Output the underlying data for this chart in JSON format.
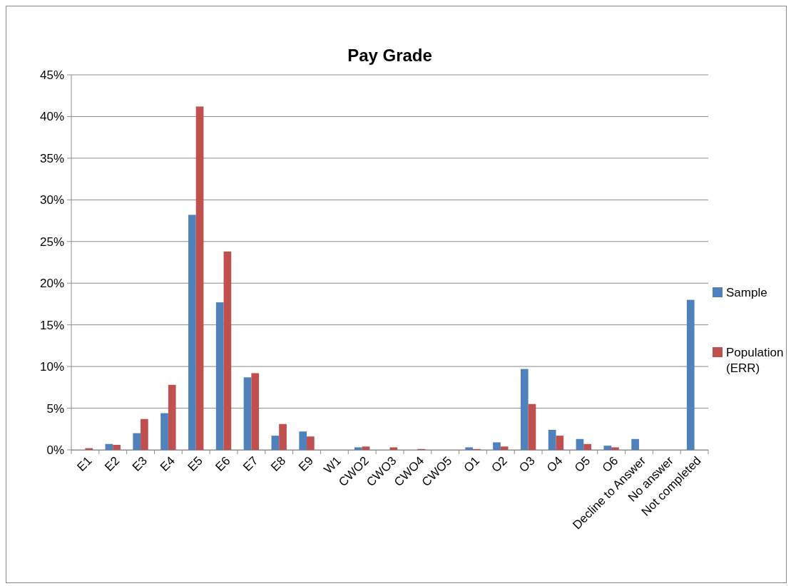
{
  "chart_data": {
    "type": "bar",
    "title": "Pay Grade",
    "categories": [
      "E1",
      "E2",
      "E3",
      "E4",
      "E5",
      "E6",
      "E7",
      "E8",
      "E9",
      "W1",
      "CWO2",
      "CWO3",
      "CWO4",
      "CWO5",
      "O1",
      "O2",
      "O3",
      "O4",
      "O5",
      "O6",
      "Decline to Answer",
      "No answer",
      "Not completed"
    ],
    "series": [
      {
        "name": "Sample",
        "color": "#4f81bd",
        "values": [
          0,
          0.7,
          2.0,
          4.4,
          28.2,
          17.7,
          8.7,
          1.7,
          2.2,
          0,
          0.3,
          0,
          0,
          0,
          0.3,
          0.9,
          9.7,
          2.4,
          1.3,
          0.5,
          1.3,
          0,
          18.0
        ]
      },
      {
        "name": "Population (ERR)",
        "color": "#c0504d",
        "values": [
          0.2,
          0.6,
          3.7,
          7.8,
          41.2,
          23.8,
          9.2,
          3.1,
          1.6,
          0,
          0.4,
          0.3,
          0.1,
          0,
          0.1,
          0.4,
          5.5,
          1.7,
          0.7,
          0.3,
          0,
          0,
          0
        ]
      }
    ],
    "ylim": [
      0,
      45
    ],
    "yticks": [
      {
        "value": 0,
        "label": "0%"
      },
      {
        "value": 5,
        "label": "5%"
      },
      {
        "value": 10,
        "label": "10%"
      },
      {
        "value": 15,
        "label": "15%"
      },
      {
        "value": 20,
        "label": "20%"
      },
      {
        "value": 25,
        "label": "25%"
      },
      {
        "value": 30,
        "label": "30%"
      },
      {
        "value": 35,
        "label": "35%"
      },
      {
        "value": 40,
        "label": "40%"
      },
      {
        "value": 45,
        "label": "45%"
      }
    ],
    "grid": "y",
    "legend": "right"
  }
}
